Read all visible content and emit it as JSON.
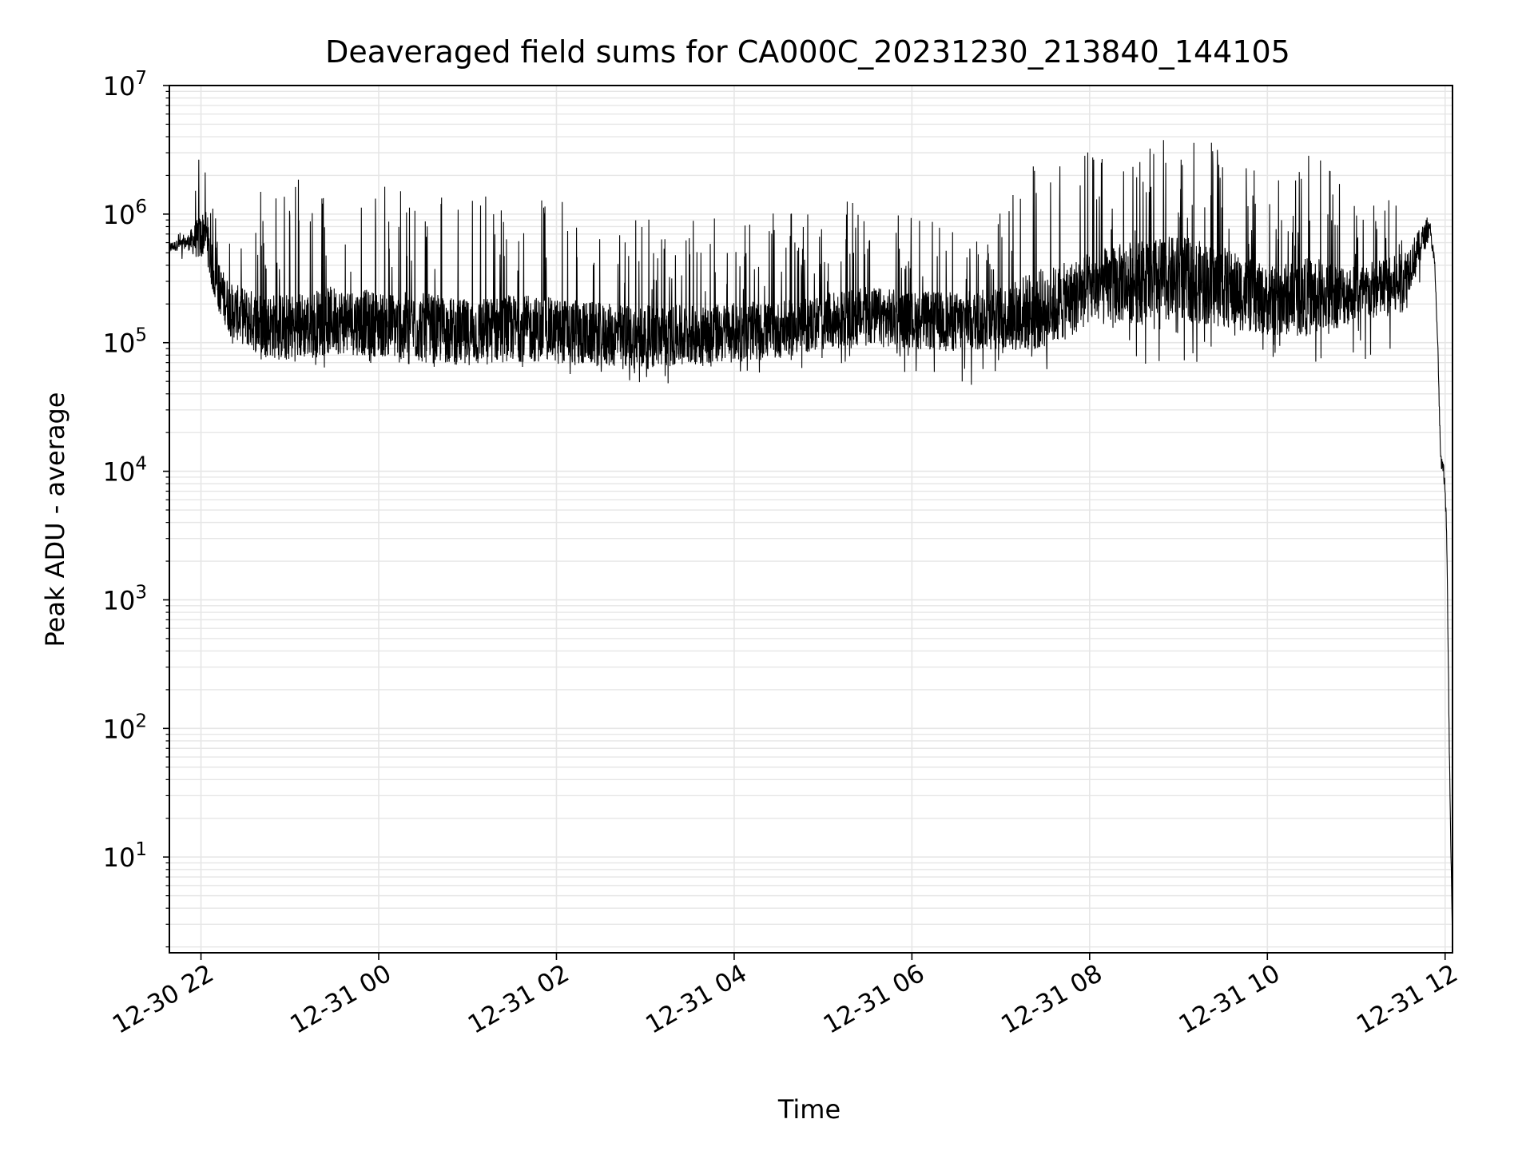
{
  "chart_data": {
    "type": "line",
    "title": "Deaveraged field sums for CA000C_20231230_213840_144105",
    "xlabel": "Time",
    "ylabel": "Peak ADU - average",
    "yscale": "log",
    "ylim": [
      1.8,
      10000000
    ],
    "xlim": [
      "2023-12-30 21:38:40",
      "2023-12-31 12:05:00"
    ],
    "grid": true,
    "line_color": "#000000",
    "grid_color": "#e6e6e6",
    "x_ticks": [
      {
        "t": "2023-12-30 22:00",
        "label": "12-30 22"
      },
      {
        "t": "2023-12-31 00:00",
        "label": "12-31 00"
      },
      {
        "t": "2023-12-31 02:00",
        "label": "12-31 02"
      },
      {
        "t": "2023-12-31 04:00",
        "label": "12-31 04"
      },
      {
        "t": "2023-12-31 06:00",
        "label": "12-31 06"
      },
      {
        "t": "2023-12-31 08:00",
        "label": "12-31 08"
      },
      {
        "t": "2023-12-31 10:00",
        "label": "12-31 10"
      },
      {
        "t": "2023-12-31 12:00",
        "label": "12-31 12"
      }
    ],
    "y_ticks": [
      {
        "value": 10,
        "base": "10",
        "exp": "1"
      },
      {
        "value": 100,
        "base": "10",
        "exp": "2"
      },
      {
        "value": 1000,
        "base": "10",
        "exp": "3"
      },
      {
        "value": 10000,
        "base": "10",
        "exp": "4"
      },
      {
        "value": 100000,
        "base": "10",
        "exp": "5"
      },
      {
        "value": 1000000,
        "base": "10",
        "exp": "6"
      },
      {
        "value": 10000000,
        "base": "10",
        "exp": "7"
      }
    ],
    "series": [
      {
        "x": [
          "2023-12-30 21:38:40",
          "2023-12-30 21:50",
          "2023-12-30 22:00",
          "2023-12-30 22:03",
          "2023-12-30 22:06",
          "2023-12-30 22:10",
          "2023-12-30 22:20",
          "2023-12-30 22:40",
          "2023-12-30 23:00",
          "2023-12-30 23:30",
          "2023-12-31 00:00",
          "2023-12-31 00:30",
          "2023-12-31 01:00",
          "2023-12-31 01:30",
          "2023-12-31 02:00",
          "2023-12-31 02:30",
          "2023-12-31 03:00",
          "2023-12-31 03:30",
          "2023-12-31 04:00",
          "2023-12-31 04:30",
          "2023-12-31 05:00",
          "2023-12-31 05:30",
          "2023-12-31 06:00",
          "2023-12-31 06:30",
          "2023-12-31 07:00",
          "2023-12-31 07:20",
          "2023-12-31 07:40",
          "2023-12-31 08:00",
          "2023-12-31 08:30",
          "2023-12-31 09:00",
          "2023-12-31 09:30",
          "2023-12-31 10:00",
          "2023-12-31 10:30",
          "2023-12-31 11:00",
          "2023-12-31 11:30",
          "2023-12-31 11:45",
          "2023-12-31 11:50",
          "2023-12-31 11:53",
          "2023-12-31 11:55",
          "2023-12-31 11:57",
          "2023-12-31 11:59",
          "2023-12-31 12:01",
          "2023-12-31 12:03",
          "2023-12-31 12:05"
        ],
        "base": [
          550000,
          600000,
          650000,
          800000,
          450000,
          300000,
          180000,
          140000,
          130000,
          150000,
          140000,
          130000,
          120000,
          130000,
          125000,
          115000,
          110000,
          115000,
          120000,
          125000,
          145000,
          160000,
          150000,
          145000,
          155000,
          175000,
          200000,
          260000,
          300000,
          320000,
          270000,
          210000,
          230000,
          240000,
          280000,
          650000,
          750000,
          400000,
          100000,
          12000,
          10000,
          4000,
          50,
          2
        ],
        "spike_max": [
          700000,
          800000,
          5300000,
          2000000,
          1300000,
          1200000,
          1300000,
          1700000,
          2200000,
          1800000,
          1600000,
          2200000,
          1600000,
          1600000,
          1400000,
          1200000,
          1100000,
          1000000,
          1100000,
          1000000,
          1100000,
          1400000,
          1000000,
          800000,
          1300000,
          3500000,
          3000000,
          3200000,
          3800000,
          3900000,
          3700000,
          1800000,
          3800000,
          1300000,
          1400000,
          1100000,
          900000,
          400000,
          100000,
          15000,
          12000,
          5000,
          60,
          2
        ],
        "dip_min": [
          420000,
          450000,
          450000,
          250000,
          150000,
          110000,
          90000,
          70000,
          70000,
          60000,
          60000,
          65000,
          60000,
          55000,
          55000,
          50000,
          45000,
          50000,
          55000,
          60000,
          65000,
          70000,
          55000,
          40000,
          60000,
          60000,
          60000,
          80000,
          60000,
          60000,
          60000,
          60000,
          70000,
          75000,
          60000,
          300000,
          400000,
          200000,
          50000,
          7000,
          6000,
          2000,
          30,
          1.8
        ]
      }
    ]
  }
}
